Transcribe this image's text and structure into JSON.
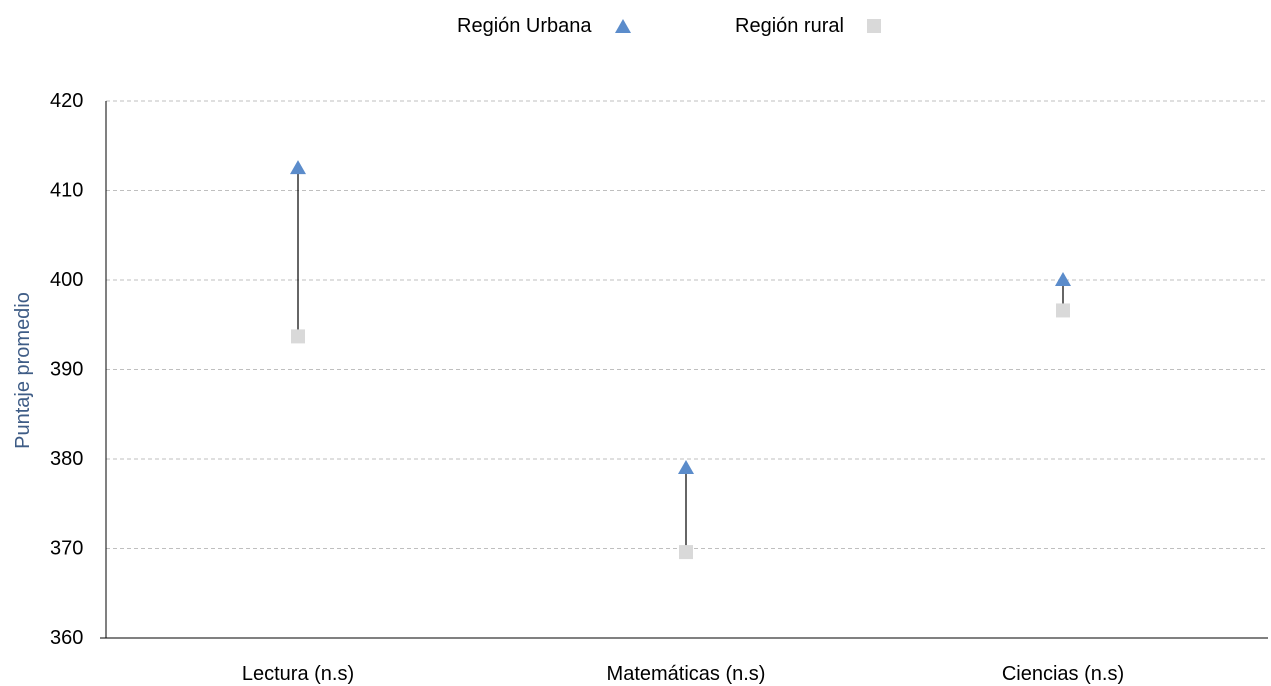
{
  "chart_data": {
    "type": "dot-range",
    "categories": [
      "Lectura (n.s)",
      "Matemáticas (n.s)",
      "Ciencias (n.s)"
    ],
    "series": [
      {
        "name": "Región Urbana",
        "marker": "triangle",
        "color": "#5B8CCB",
        "values": [
          412.5,
          379,
          400
        ]
      },
      {
        "name": "Región rural",
        "marker": "square",
        "color": "#D9D9D9",
        "values": [
          393.7,
          369.6,
          396.6
        ]
      }
    ],
    "ylabel": "Puntaje promedio",
    "ylabel_color": "#3E5C86",
    "ylim": [
      360,
      420
    ],
    "yticks": [
      360,
      370,
      380,
      390,
      400,
      410,
      420
    ],
    "grid": true,
    "legend_position": "top-center"
  }
}
